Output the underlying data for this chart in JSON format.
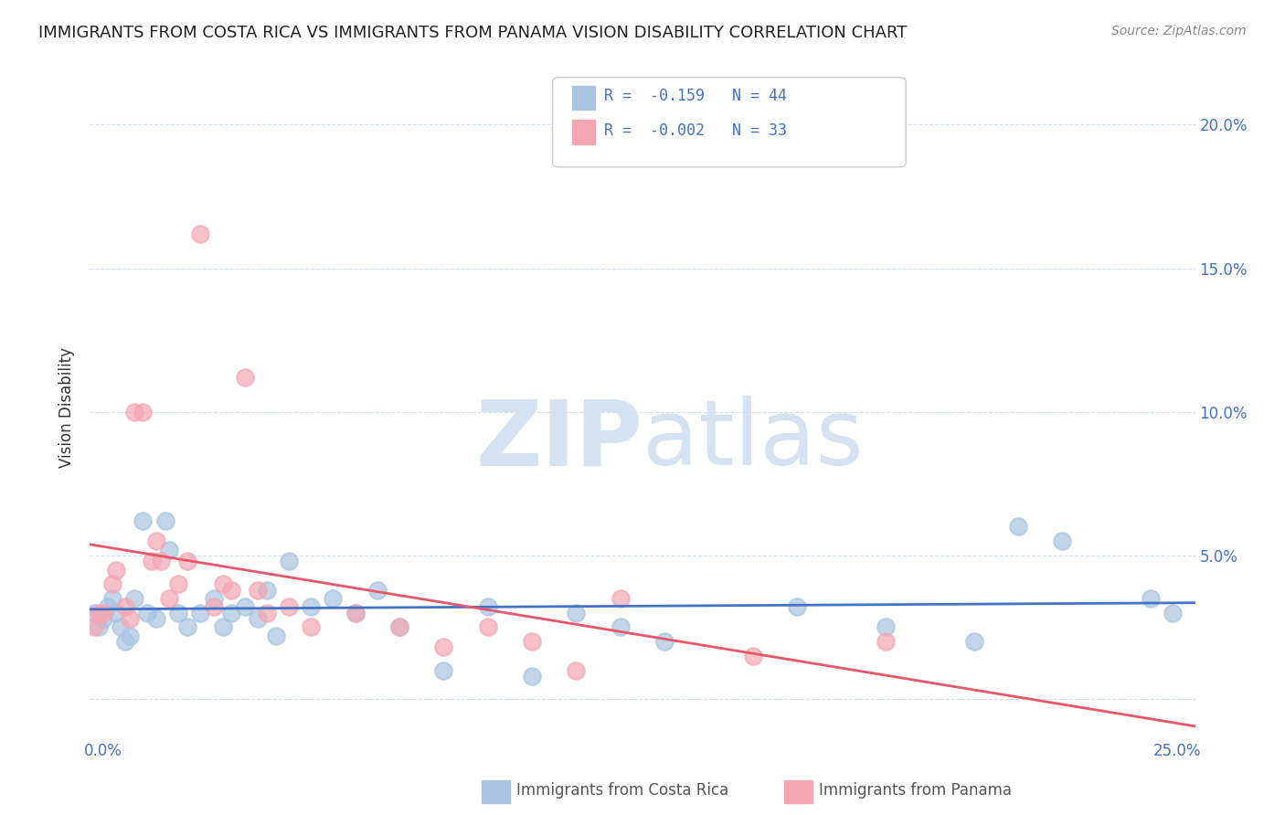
{
  "title": "IMMIGRANTS FROM COSTA RICA VS IMMIGRANTS FROM PANAMA VISION DISABILITY CORRELATION CHART",
  "source": "Source: ZipAtlas.com",
  "ylabel": "Vision Disability",
  "yticks": [
    0.0,
    0.05,
    0.1,
    0.15,
    0.2
  ],
  "ytick_labels": [
    "",
    "5.0%",
    "10.0%",
    "15.0%",
    "20.0%"
  ],
  "xlim": [
    0.0,
    0.25
  ],
  "ylim": [
    -0.012,
    0.215
  ],
  "costa_rica_R": -0.159,
  "costa_rica_N": 44,
  "panama_R": -0.002,
  "panama_N": 33,
  "costa_rica_color": "#a8c4e0",
  "panama_color": "#f4a7b3",
  "trend_costa_rica_color": "#4472c4",
  "trend_panama_color": "#e8566a",
  "background_color": "#ffffff",
  "grid_color": "#c8d8e8",
  "watermark_color": "#d0dff0",
  "costa_rica_x": [
    0.001,
    0.002,
    0.003,
    0.004,
    0.005,
    0.006,
    0.007,
    0.008,
    0.009,
    0.01,
    0.012,
    0.013,
    0.015,
    0.017,
    0.018,
    0.02,
    0.022,
    0.025,
    0.028,
    0.03,
    0.032,
    0.035,
    0.038,
    0.04,
    0.042,
    0.045,
    0.05,
    0.055,
    0.06,
    0.065,
    0.07,
    0.08,
    0.09,
    0.1,
    0.11,
    0.12,
    0.13,
    0.16,
    0.18,
    0.2,
    0.21,
    0.22,
    0.24,
    0.245
  ],
  "costa_rica_y": [
    0.03,
    0.025,
    0.028,
    0.032,
    0.035,
    0.03,
    0.025,
    0.02,
    0.022,
    0.035,
    0.062,
    0.03,
    0.028,
    0.062,
    0.052,
    0.03,
    0.025,
    0.03,
    0.035,
    0.025,
    0.03,
    0.032,
    0.028,
    0.038,
    0.022,
    0.048,
    0.032,
    0.035,
    0.03,
    0.038,
    0.025,
    0.01,
    0.032,
    0.008,
    0.03,
    0.025,
    0.02,
    0.032,
    0.025,
    0.02,
    0.06,
    0.055,
    0.035,
    0.03
  ],
  "panama_x": [
    0.001,
    0.002,
    0.003,
    0.005,
    0.006,
    0.008,
    0.009,
    0.01,
    0.012,
    0.014,
    0.015,
    0.016,
    0.018,
    0.02,
    0.022,
    0.025,
    0.028,
    0.03,
    0.032,
    0.035,
    0.038,
    0.04,
    0.045,
    0.05,
    0.06,
    0.07,
    0.08,
    0.09,
    0.1,
    0.11,
    0.12,
    0.15,
    0.18
  ],
  "panama_y": [
    0.025,
    0.03,
    0.03,
    0.04,
    0.045,
    0.032,
    0.028,
    0.1,
    0.1,
    0.048,
    0.055,
    0.048,
    0.035,
    0.04,
    0.048,
    0.162,
    0.032,
    0.04,
    0.038,
    0.112,
    0.038,
    0.03,
    0.032,
    0.025,
    0.03,
    0.025,
    0.018,
    0.025,
    0.02,
    0.01,
    0.035,
    0.015,
    0.02
  ]
}
